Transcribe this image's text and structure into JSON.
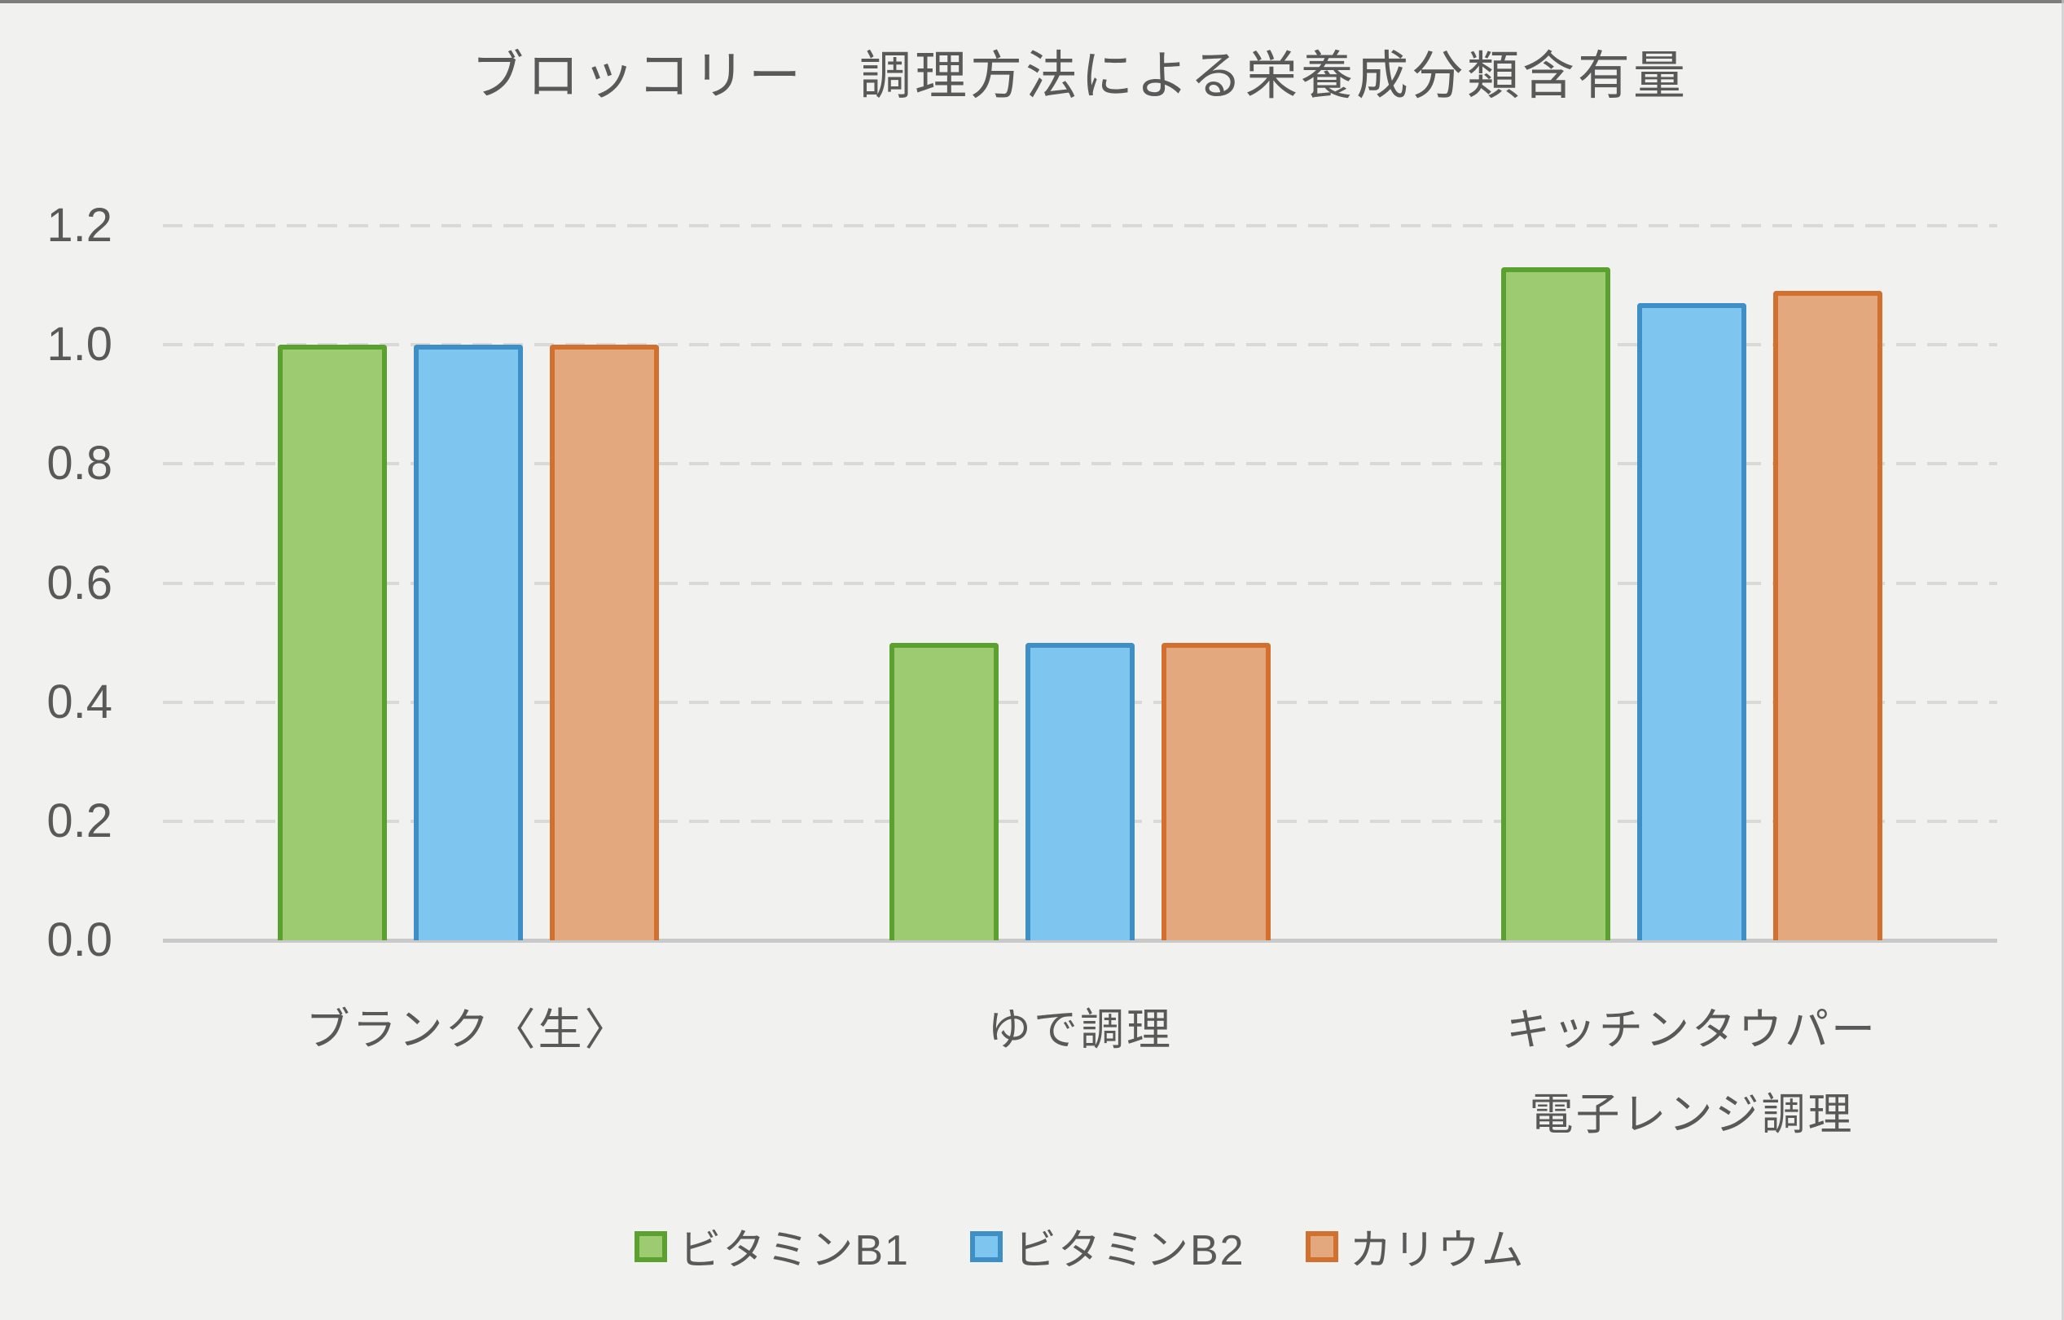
{
  "chart_data": {
    "type": "bar",
    "title": "ブロッコリー　調理方法による栄養成分類含有量",
    "categories": [
      {
        "lines": [
          "ブランク〈生〉"
        ]
      },
      {
        "lines": [
          "ゆで調理"
        ]
      },
      {
        "lines": [
          "キッチンタウパー",
          "電子レンジ調理"
        ]
      }
    ],
    "series": [
      {
        "name": "ビタミンB1",
        "values": [
          1.0,
          0.5,
          1.13
        ],
        "fill_color": "#9ccb72",
        "border_color": "#5aa12f"
      },
      {
        "name": "ビタミンB2",
        "values": [
          1.0,
          0.5,
          1.07
        ],
        "fill_color": "#7ec6ef",
        "border_color": "#3e8fc5"
      },
      {
        "name": "カリウム",
        "values": [
          1.0,
          0.5,
          1.09
        ],
        "fill_color": "#e4a87e",
        "border_color": "#d2702f"
      }
    ],
    "y_axis": {
      "min": 0.0,
      "max": 1.2,
      "step": 0.2,
      "tick_labels": [
        "0.0",
        "0.2",
        "0.4",
        "0.6",
        "0.8",
        "1.0",
        "1.2"
      ]
    },
    "grid": {
      "horizontal": true,
      "style": "dashed",
      "color": "#d9d9d9"
    },
    "legend_position": "bottom"
  },
  "style": {
    "background": "#f1f1f0",
    "text_color": "#595959",
    "gridline_color": "#d9d9d9",
    "axis_line_color": "#c9c9c9",
    "top_border_color": "#7d7d7d"
  }
}
